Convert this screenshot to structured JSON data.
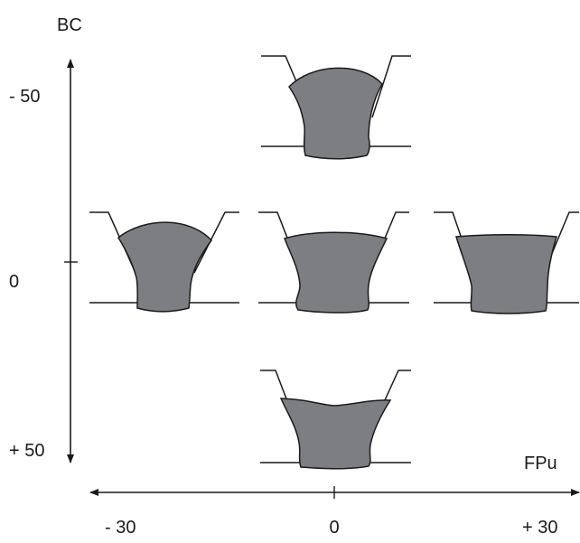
{
  "axes": {
    "vertical": {
      "title": "BC",
      "ticks": [
        "- 50",
        "0",
        "+ 50"
      ]
    },
    "horizontal": {
      "title": "FPu",
      "ticks": [
        "- 30",
        "0",
        "+ 30"
      ]
    }
  },
  "weld_profiles": [
    {
      "fpu": 0,
      "bc": -50,
      "shape": "narrow-waist"
    },
    {
      "fpu": -30,
      "bc": 0,
      "shape": "narrow-waist"
    },
    {
      "fpu": 0,
      "bc": 0,
      "shape": "medium-waist"
    },
    {
      "fpu": 30,
      "bc": 0,
      "shape": "flat-top"
    },
    {
      "fpu": 0,
      "bc": 50,
      "shape": "wavy-top"
    }
  ],
  "colors": {
    "bead_fill": "#7d7e82",
    "line": "#1a1a1a"
  }
}
